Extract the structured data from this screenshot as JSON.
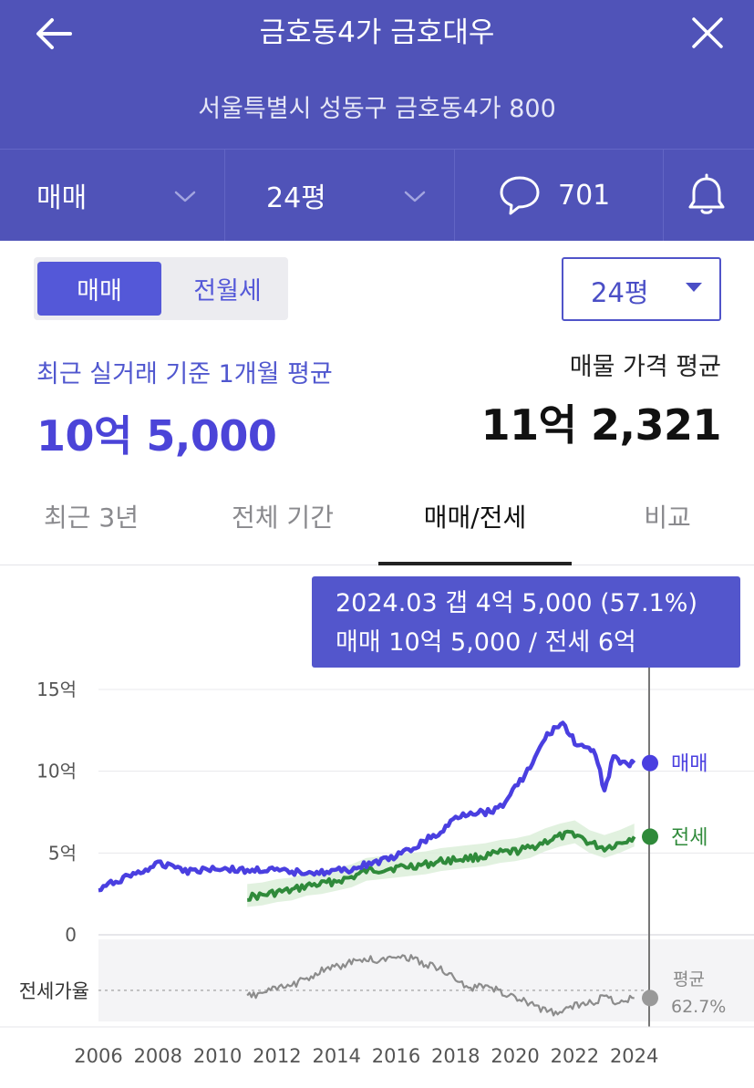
{
  "header": {
    "title": "금호동4가 금호대우",
    "address": "서울특별시 성동구 금호동4가 800",
    "back_icon": "arrow-left-icon",
    "close_icon": "close-icon",
    "trade_type": "매매",
    "area": "24평",
    "comment_count": "701",
    "comment_icon": "speech-bubble-icon",
    "alert_icon": "bell-icon"
  },
  "toggle": {
    "sale": "매매",
    "lease": "전월세",
    "selected": "매매"
  },
  "size_select": {
    "value": "24평"
  },
  "summary": {
    "recent_label": "최근 실거래 기준 1개월 평균",
    "recent_value": "10억 5,000",
    "listing_label": "매물 가격 평균",
    "listing_value": "11억 2,321"
  },
  "tabs": [
    {
      "label": "최근 3년"
    },
    {
      "label": "전체 기간"
    },
    {
      "label": "매매/전세",
      "active": true
    },
    {
      "label": "비교"
    }
  ],
  "tooltip": {
    "line1": "2024.03  갭 4억 5,000 (57.1%)",
    "line2": "매매 10억 5,000 / 전세 6억"
  },
  "colors": {
    "header_bg": "#5053b8",
    "accent": "#5458d8",
    "sale_line": "#4a3fe0",
    "lease_line": "#2f8a3a",
    "ratio_line": "#8c8c8c"
  },
  "chart_data": {
    "type": "line",
    "y_ticks": [
      "15억",
      "10억",
      "5억",
      "0"
    ],
    "y_unit": "억",
    "ylim": [
      0,
      15
    ],
    "x_ticks": [
      "2006",
      "2008",
      "2010",
      "2012",
      "2014",
      "2016",
      "2018",
      "2020",
      "2022",
      "2024"
    ],
    "xlim": [
      2006,
      2024.5
    ],
    "ratio_label": "전세가율",
    "ratio_avg_label": "평균",
    "ratio_avg_value": "62.7%",
    "series": [
      {
        "name": "매매",
        "x": [
          2006.0,
          2006.5,
          2007.0,
          2007.5,
          2008.0,
          2008.5,
          2009.0,
          2009.5,
          2010.0,
          2010.5,
          2011.0,
          2011.5,
          2012.0,
          2012.5,
          2013.0,
          2013.5,
          2014.0,
          2014.5,
          2015.0,
          2015.5,
          2016.0,
          2016.5,
          2017.0,
          2017.5,
          2018.0,
          2018.5,
          2019.0,
          2019.5,
          2020.0,
          2020.5,
          2021.0,
          2021.3,
          2021.6,
          2022.0,
          2022.4,
          2022.7,
          2023.0,
          2023.3,
          2023.6,
          2024.0
        ],
        "values": [
          2.7,
          3.2,
          3.6,
          3.9,
          4.3,
          4.3,
          3.9,
          4.0,
          4.1,
          4.0,
          3.9,
          4.0,
          3.9,
          3.8,
          3.9,
          3.8,
          3.9,
          4.0,
          4.3,
          4.5,
          4.8,
          5.2,
          5.8,
          6.2,
          7.2,
          7.5,
          7.5,
          7.8,
          9.0,
          10.2,
          12.0,
          12.6,
          12.9,
          11.8,
          11.3,
          11.1,
          8.8,
          10.9,
          10.4,
          10.5
        ]
      },
      {
        "name": "전세",
        "x": [
          2011.0,
          2011.5,
          2012.0,
          2012.5,
          2013.0,
          2013.5,
          2014.0,
          2014.5,
          2015.0,
          2015.5,
          2016.0,
          2016.5,
          2017.0,
          2017.5,
          2018.0,
          2018.5,
          2019.0,
          2019.5,
          2020.0,
          2020.5,
          2021.0,
          2021.5,
          2022.0,
          2022.5,
          2023.0,
          2023.5,
          2024.0
        ],
        "values": [
          2.3,
          2.4,
          2.6,
          2.7,
          3.0,
          3.1,
          3.3,
          3.5,
          3.9,
          4.0,
          4.1,
          4.2,
          4.3,
          4.5,
          4.6,
          4.7,
          4.8,
          5.0,
          5.1,
          5.3,
          5.7,
          6.0,
          6.2,
          5.6,
          5.3,
          5.6,
          6.0
        ]
      },
      {
        "name": "전세가율",
        "x": [
          2011.0,
          2011.5,
          2012.0,
          2012.5,
          2013.0,
          2013.5,
          2014.0,
          2014.5,
          2015.0,
          2015.5,
          2016.0,
          2016.5,
          2017.0,
          2017.5,
          2018.0,
          2018.5,
          2019.0,
          2019.5,
          2020.0,
          2020.5,
          2021.0,
          2021.5,
          2022.0,
          2022.5,
          2023.0,
          2023.5,
          2024.0
        ],
        "values": [
          58,
          61,
          64,
          66,
          72,
          77,
          80,
          83,
          86,
          84,
          89,
          86,
          82,
          79,
          70,
          64,
          66,
          62,
          57,
          53,
          48,
          46,
          52,
          53,
          58,
          54,
          57.1
        ]
      }
    ]
  }
}
